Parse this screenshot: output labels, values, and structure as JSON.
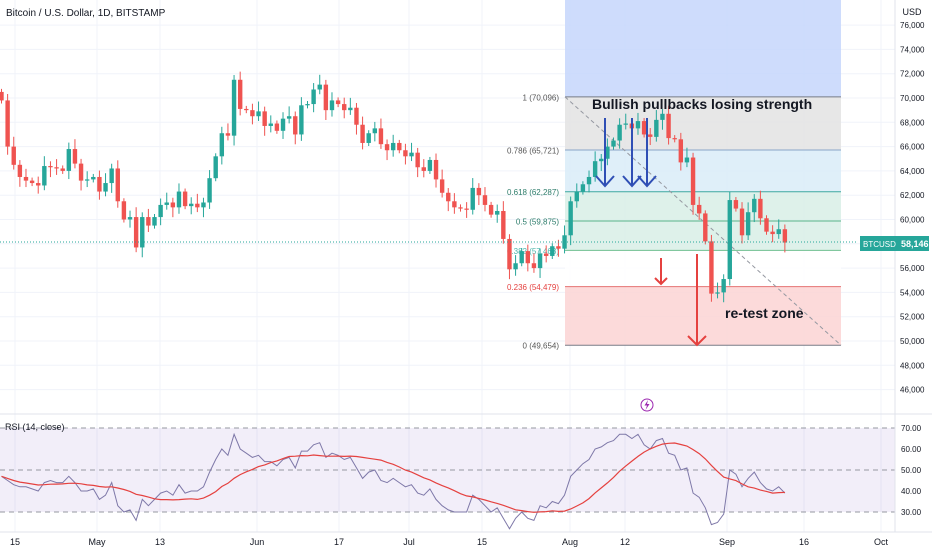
{
  "header": {
    "title": "Bitcoin / U.S. Dollar, 1D, BITSTAMP",
    "currency": "USD"
  },
  "price_tag": {
    "symbol": "BTCUSD",
    "value": "58,146"
  },
  "annotations": {
    "headline": "Bullish pullbacks losing strength",
    "zone": "re-test zone"
  },
  "rsi_label": "RSI (14, close)",
  "colors": {
    "up": "#26a69a",
    "down": "#ef5350",
    "rsi_line": "#7e78a8",
    "rsi_ma": "#e5413f",
    "fib_blue": "#c6d6fb",
    "fib_gray": "#e3e3e3",
    "fib_cyan": "#d9ecf8",
    "fib_green": "#d8efe6",
    "fib_red": "#fbd3d3",
    "arrow_blue": "#2f4fb5",
    "arrow_red": "#e5413f"
  },
  "chart_data": [
    {
      "type": "candlestick",
      "title": "Bitcoin / U.S. Dollar, 1D, BITSTAMP",
      "y_axis": {
        "ticks": [
          46000,
          48000,
          50000,
          52000,
          54000,
          56000,
          58000,
          60000,
          62000,
          64000,
          66000,
          68000,
          70000,
          72000,
          74000,
          76000
        ],
        "tick_labels": [
          "46,000",
          "48,000",
          "50,000",
          "52,000",
          "54,000",
          "56,000",
          "58,000",
          "60,000",
          "62,000",
          "64,000",
          "66,000",
          "68,000",
          "70,000",
          "72,000",
          "74,000",
          "76,000"
        ],
        "range": [
          44000,
          78000
        ]
      },
      "x_axis": {
        "tick_labels": [
          "15",
          "May",
          "13",
          "Jun",
          "17",
          "Jul",
          "15",
          "Aug",
          "12",
          "Sep",
          "16",
          "Oct"
        ]
      },
      "last_price": 58146,
      "closes_approx": [
        69800,
        66000,
        64500,
        63500,
        63200,
        63000,
        62800,
        64400,
        64300,
        64200,
        64000,
        65800,
        64600,
        63200,
        63300,
        63500,
        62300,
        63000,
        64200,
        61500,
        60000,
        60200,
        57700,
        60200,
        59500,
        60200,
        61200,
        61400,
        61000,
        62300,
        61100,
        61300,
        61000,
        61400,
        63400,
        65200,
        67100,
        66900,
        71500,
        69100,
        69000,
        68500,
        68900,
        67700,
        67900,
        67300,
        68300,
        68500,
        67000,
        69400,
        69500,
        70700,
        71100,
        69000,
        69800,
        69500,
        69000,
        69200,
        67800,
        66300,
        67100,
        67500,
        66200,
        65700,
        66300,
        65700,
        65200,
        65500,
        64300,
        64000,
        64900,
        63300,
        62200,
        61500,
        61000,
        60900,
        60800,
        62600,
        62000,
        61200,
        60400,
        60700,
        58400,
        55900,
        56400,
        57400,
        56400,
        56000,
        57200,
        57000,
        57800,
        57600,
        58700,
        61500,
        62300,
        62900,
        63500,
        64800,
        65000,
        66000,
        66500,
        67800,
        67900,
        67500,
        68100,
        67000,
        66800,
        68200,
        68700,
        66700,
        66600,
        64700,
        65100,
        61200,
        60500,
        58200,
        53900,
        54000,
        55100,
        61600,
        60900,
        58700,
        60600,
        61700,
        60100,
        59000,
        58800,
        59200,
        58100
      ],
      "fibonacci_retracement": {
        "levels": [
          {
            "ratio": "1",
            "price": "70,096",
            "label": "1 (70,096)"
          },
          {
            "ratio": "0.786",
            "price": "65,721",
            "label": "0.786 (65,721)"
          },
          {
            "ratio": "0.618",
            "price": "62,287",
            "label": "0.618 (62,287)"
          },
          {
            "ratio": "0.5",
            "price": "59,875",
            "label": "0.5 (59,875)"
          },
          {
            "ratio": "0.382",
            "price": "57,463",
            "label": "0.382 (57,463)"
          },
          {
            "ratio": "0.236",
            "price": "54,479",
            "label": "0.236 (54,479)"
          },
          {
            "ratio": "0",
            "price": "49,654",
            "label": "0 (49,654)"
          }
        ]
      }
    },
    {
      "type": "line",
      "title": "RSI (14, close)",
      "y_axis": {
        "ticks": [
          30,
          40,
          50,
          60,
          70
        ],
        "tick_labels": [
          "30.00",
          "40.00",
          "50.00",
          "60.00",
          "70.00"
        ],
        "range": [
          25,
          73
        ]
      },
      "series": [
        {
          "name": "RSI",
          "values": [
            47,
            45,
            43,
            42,
            42,
            41,
            40,
            44,
            45,
            44,
            44,
            47,
            44,
            40,
            40,
            41,
            36,
            38,
            44,
            33,
            30,
            31,
            26,
            36,
            33,
            36,
            39,
            40,
            38,
            43,
            39,
            40,
            40,
            42,
            49,
            55,
            60,
            57,
            67,
            60,
            58,
            56,
            57,
            54,
            54,
            52,
            55,
            56,
            51,
            59,
            59,
            62,
            63,
            56,
            58,
            57,
            55,
            56,
            51,
            46,
            49,
            50,
            45,
            44,
            46,
            44,
            42,
            43,
            39,
            38,
            41,
            36,
            33,
            31,
            30,
            30,
            30,
            38,
            36,
            33,
            30,
            32,
            27,
            22,
            27,
            30,
            27,
            26,
            33,
            32,
            35,
            34,
            38,
            47,
            50,
            53,
            55,
            60,
            61,
            63,
            64,
            67,
            67,
            65,
            67,
            62,
            60,
            64,
            65,
            58,
            57,
            50,
            51,
            39,
            37,
            32,
            24,
            25,
            29,
            50,
            48,
            42,
            46,
            49,
            44,
            41,
            40,
            42,
            39
          ]
        },
        {
          "name": "RSI-based MA",
          "values": []
        }
      ]
    }
  ]
}
